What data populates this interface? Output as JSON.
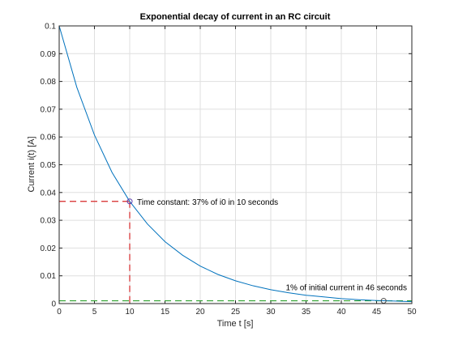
{
  "chart_data": {
    "type": "line",
    "title": "Exponential decay of current in an RC circuit",
    "xlabel": "Time t [s]",
    "ylabel": "Current i(t) [A]",
    "xlim": [
      0,
      50
    ],
    "ylim": [
      0,
      0.1
    ],
    "x_ticks": [
      "0",
      "5",
      "10",
      "15",
      "20",
      "25",
      "30",
      "35",
      "40",
      "45",
      "50"
    ],
    "y_ticks": [
      "0",
      "0.01",
      "0.02",
      "0.03",
      "0.04",
      "0.05",
      "0.06",
      "0.07",
      "0.08",
      "0.09",
      "0.1"
    ],
    "grid": true,
    "series": [
      {
        "color": "#0072bd",
        "x": [
          0,
          2.5,
          5,
          7.5,
          10,
          12.5,
          15,
          17.5,
          20,
          22.5,
          25,
          27.5,
          30,
          32.5,
          35,
          37.5,
          40,
          42.5,
          45,
          47.5,
          50
        ],
        "values": [
          0.1,
          0.0779,
          0.0607,
          0.0472,
          0.0368,
          0.0287,
          0.0223,
          0.0174,
          0.0135,
          0.0105,
          0.0082,
          0.0064,
          0.005,
          0.0039,
          0.003,
          0.0024,
          0.0018,
          0.0014,
          0.0011,
          0.0009,
          0.0007
        ]
      }
    ],
    "markers": [
      {
        "x": 10,
        "y": 0.0368,
        "label": "Time constant: 37% of i0 in 10 seconds",
        "line_color": "#d62728"
      },
      {
        "x": 46,
        "y": 0.001,
        "label": "1% of initial current in 46 seconds",
        "line_color": "#2ca02c"
      }
    ]
  }
}
